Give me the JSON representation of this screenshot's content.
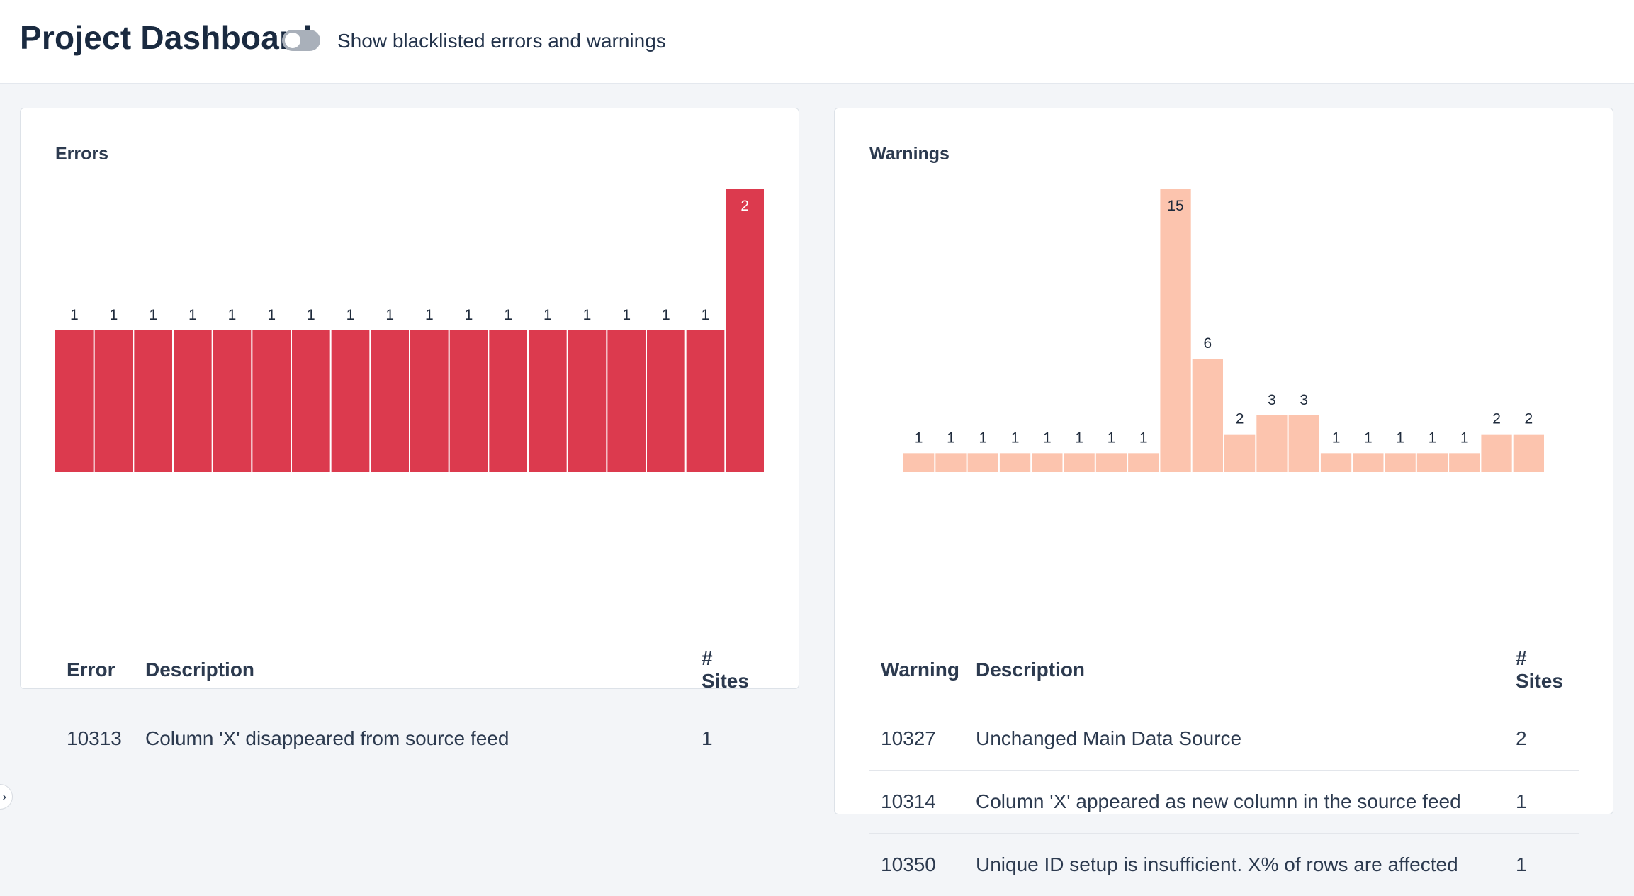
{
  "header": {
    "title": "Project Dashboard",
    "toggle_label": "Show blacklisted errors and warnings",
    "toggle_on": false
  },
  "errors": {
    "title": "Errors",
    "table": {
      "headers": [
        "Error",
        "Description",
        "# Sites"
      ],
      "rows": [
        {
          "code": "10313",
          "description": "Column 'X' disappeared from source feed",
          "sites": "1"
        }
      ]
    }
  },
  "warnings": {
    "title": "Warnings",
    "table": {
      "headers": [
        "Warning",
        "Description",
        "# Sites"
      ],
      "rows": [
        {
          "code": "10327",
          "description": "Unchanged Main Data Source",
          "sites": "2"
        },
        {
          "code": "10314",
          "description": "Column 'X' appeared as new column in the source feed",
          "sites": "1"
        },
        {
          "code": "10350",
          "description": "Unique ID setup is insufficient. X% of rows are affected",
          "sites": "1"
        }
      ]
    }
  },
  "chart_data": [
    {
      "type": "bar",
      "title": "Errors",
      "values": [
        1,
        1,
        1,
        1,
        1,
        1,
        1,
        1,
        1,
        1,
        1,
        1,
        1,
        1,
        1,
        1,
        1,
        2
      ],
      "ylim": [
        0,
        2
      ],
      "color": "#dc3a4e",
      "label_color_inside": "#ffffff",
      "label_color_outside": "#1f2b3c"
    },
    {
      "type": "bar",
      "title": "Warnings",
      "values": [
        1,
        1,
        1,
        1,
        1,
        1,
        1,
        1,
        15,
        6,
        2,
        3,
        3,
        1,
        1,
        1,
        1,
        1,
        2,
        2
      ],
      "ylim": [
        0,
        15
      ],
      "color": "#fcc4ae",
      "label_color_inside": "#1f2b3c",
      "label_color_outside": "#1f2b3c"
    }
  ]
}
